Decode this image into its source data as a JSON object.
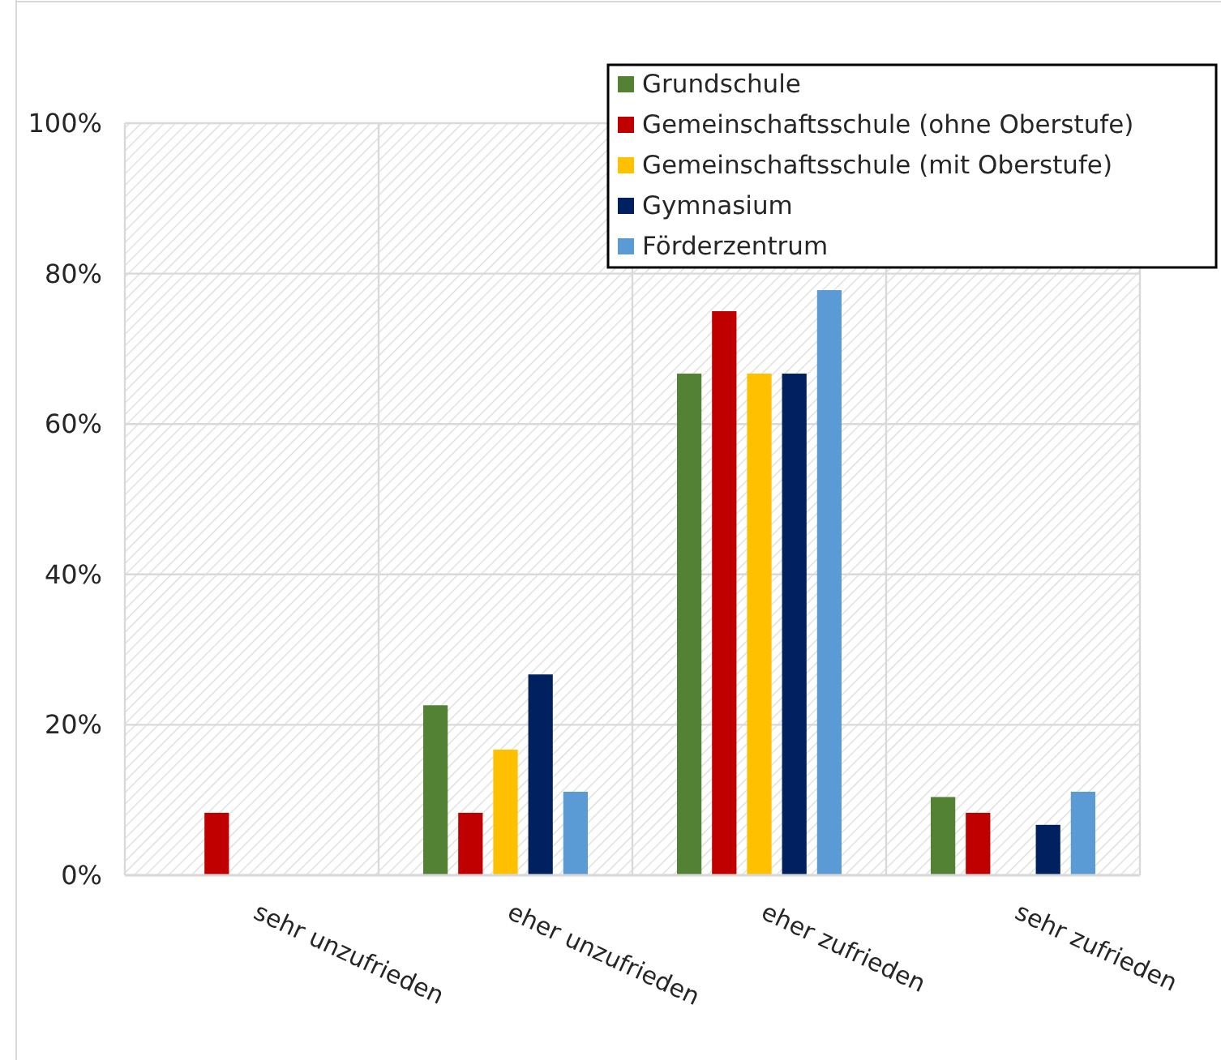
{
  "chart_data": {
    "type": "bar",
    "categories": [
      "sehr unzufrieden",
      "eher unzufrieden",
      "eher zufrieden",
      "sehr zufrieden"
    ],
    "series": [
      {
        "name": "Grundschule",
        "color": "#548235",
        "values": [
          0,
          22.6,
          66.7,
          10.4
        ]
      },
      {
        "name": "Gemeinschaftsschule (ohne Oberstufe)",
        "color": "#c00000",
        "values": [
          8.3,
          8.3,
          75,
          8.3
        ]
      },
      {
        "name": "Gemeinschaftsschule (mit Oberstufe)",
        "color": "#ffc000",
        "values": [
          0,
          16.7,
          66.7,
          0
        ]
      },
      {
        "name": "Gymnasium",
        "color": "#002060",
        "values": [
          0,
          26.7,
          66.7,
          6.7
        ]
      },
      {
        "name": "Förderzentrum",
        "color": "#5b9bd5",
        "values": [
          0,
          11.1,
          77.8,
          11.1
        ]
      }
    ],
    "ylim": [
      0,
      100
    ],
    "yticks": [
      {
        "value": 0,
        "label": "0%"
      },
      {
        "value": 20,
        "label": "20%"
      },
      {
        "value": 40,
        "label": "40%"
      },
      {
        "value": 60,
        "label": "60%"
      },
      {
        "value": 80,
        "label": "80%"
      },
      {
        "value": 100,
        "label": "100%"
      }
    ],
    "grid": true,
    "legend": "top right"
  }
}
